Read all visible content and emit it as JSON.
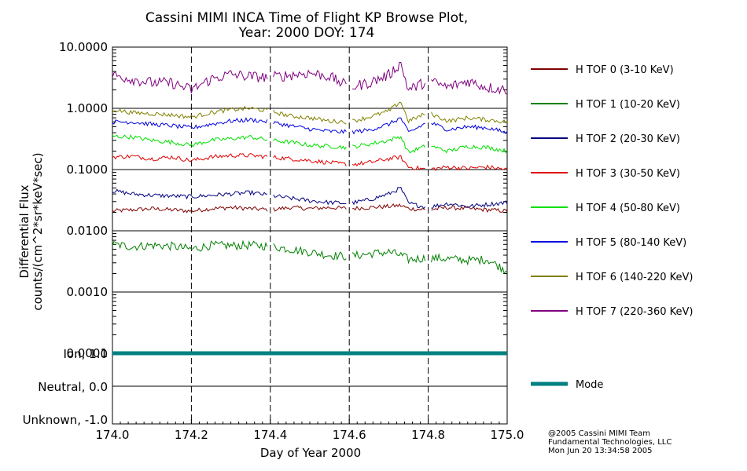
{
  "chart_data": {
    "type": "line",
    "title_line1": "Cassini MIMI INCA Time of Flight KP Browse Plot,",
    "title_line2": "Year: 2000 DOY: 174",
    "xlabel": "Day of Year 2000",
    "ylabel_line1": "Differential Flux",
    "ylabel_line2": "counts/(cm^2*sr*keV*sec)",
    "xlim": [
      174.0,
      175.0
    ],
    "x_ticks": [
      "174.0",
      "174.2",
      "174.4",
      "174.6",
      "174.8",
      "175.0"
    ],
    "y_scale": "log",
    "ylim": [
      0.0001,
      10.0
    ],
    "y_ticks": [
      "10.0000",
      "1.0000",
      "0.1000",
      "0.0100",
      "0.0010",
      "0.0001"
    ],
    "vertical_dashed_lines": [
      174.2,
      174.4,
      174.6,
      174.8
    ],
    "gaps": [
      [
        174.395,
        174.405
      ],
      [
        174.595,
        174.605
      ],
      [
        174.795,
        174.805
      ]
    ],
    "x": [
      174.0,
      174.05,
      174.1,
      174.15,
      174.2,
      174.25,
      174.3,
      174.35,
      174.4,
      174.45,
      174.5,
      174.55,
      174.6,
      174.65,
      174.7,
      174.73,
      174.75,
      174.8,
      174.85,
      174.9,
      174.95,
      175.0
    ],
    "series": [
      {
        "name": "H TOF 0 (3-10 KeV)",
        "color": "#800000",
        "values": [
          0.021,
          0.022,
          0.023,
          0.022,
          0.021,
          0.023,
          0.024,
          0.023,
          0.022,
          0.024,
          0.023,
          0.024,
          0.023,
          0.024,
          0.025,
          0.026,
          0.023,
          0.022,
          0.024,
          0.023,
          0.022,
          0.021
        ]
      },
      {
        "name": "H TOF 1 (10-20 KeV)",
        "color": "#008000",
        "values": [
          0.006,
          0.0055,
          0.0058,
          0.0056,
          0.005,
          0.0058,
          0.0057,
          0.0058,
          0.0056,
          0.005,
          0.0045,
          0.004,
          0.0038,
          0.0042,
          0.0045,
          0.004,
          0.0034,
          0.0036,
          0.0035,
          0.0033,
          0.0034,
          0.0022
        ]
      },
      {
        "name": "H TOF 2 (20-30 KeV)",
        "color": "#000080",
        "values": [
          0.045,
          0.04,
          0.038,
          0.037,
          0.036,
          0.038,
          0.04,
          0.042,
          0.038,
          0.034,
          0.031,
          0.029,
          0.028,
          0.032,
          0.04,
          0.05,
          0.028,
          0.024,
          0.028,
          0.025,
          0.027,
          0.029
        ]
      },
      {
        "name": "H TOF 3 (30-50 KeV)",
        "color": "#e00000",
        "values": [
          0.16,
          0.165,
          0.15,
          0.16,
          0.14,
          0.16,
          0.17,
          0.17,
          0.16,
          0.15,
          0.14,
          0.13,
          0.12,
          0.13,
          0.15,
          0.16,
          0.11,
          0.1,
          0.11,
          0.105,
          0.11,
          0.1
        ]
      },
      {
        "name": "H TOF 4 (50-80 KeV)",
        "color": "#00e000",
        "values": [
          0.35,
          0.34,
          0.3,
          0.28,
          0.25,
          0.3,
          0.32,
          0.34,
          0.3,
          0.28,
          0.25,
          0.24,
          0.23,
          0.26,
          0.3,
          0.35,
          0.19,
          0.25,
          0.2,
          0.24,
          0.23,
          0.2
        ]
      },
      {
        "name": "H TOF 5 (80-140 KeV)",
        "color": "#0000e0",
        "values": [
          0.6,
          0.6,
          0.55,
          0.52,
          0.48,
          0.55,
          0.62,
          0.65,
          0.6,
          0.52,
          0.46,
          0.42,
          0.41,
          0.44,
          0.55,
          0.7,
          0.4,
          0.6,
          0.45,
          0.5,
          0.48,
          0.4
        ]
      },
      {
        "name": "H TOF 6 (140-220 KeV)",
        "color": "#808000",
        "values": [
          0.95,
          0.85,
          0.82,
          0.78,
          0.72,
          0.85,
          0.95,
          1.0,
          0.9,
          0.75,
          0.7,
          0.62,
          0.6,
          0.72,
          0.9,
          1.3,
          0.62,
          0.85,
          0.62,
          0.7,
          0.65,
          0.6
        ]
      },
      {
        "name": "H TOF 7 (220-360 KeV)",
        "color": "#800080",
        "values": [
          3.5,
          3.0,
          2.6,
          2.6,
          2.0,
          3.0,
          3.6,
          3.3,
          3.2,
          3.5,
          3.8,
          3.3,
          2.2,
          2.6,
          3.5,
          5.5,
          2.0,
          2.8,
          2.2,
          2.8,
          2.2,
          2.0
        ]
      }
    ],
    "mode_panel": {
      "y_ticks": [
        "Ion, 1.0",
        "Neutral, 0.0",
        "Unknown, -1.0"
      ],
      "ylim": [
        -1.0,
        1.0
      ],
      "series": {
        "name": "Mode",
        "color": "#008080",
        "value": 1.0
      }
    }
  },
  "credits": {
    "line1": "@2005 Cassini MIMI Team",
    "line2": "Fundamental Technologies, LLC",
    "line3": "Mon Jun 20 13:34:58 2005"
  }
}
